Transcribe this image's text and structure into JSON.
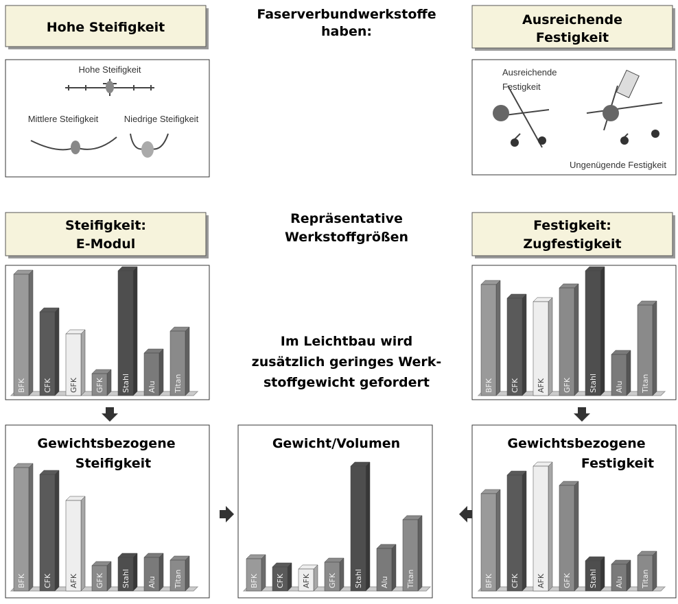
{
  "intro": {
    "title": [
      "Faserverbundwerkstoffe",
      "haben:"
    ]
  },
  "stiffness_box": {
    "title": "Hohe Steifigkeit",
    "labels": [
      "Hohe Steifigkeit",
      "Mittlere Steifigkeit",
      "Niedrige Steifigkeit"
    ]
  },
  "strength_box": {
    "title": [
      "Ausreichende",
      "Festigkeit"
    ],
    "labels": [
      "Ausreichende",
      "Festigkeit",
      "Ungenügende Festigkeit"
    ]
  },
  "middle": {
    "title": [
      "Repräsentative",
      "Werkstoffgrößen"
    ]
  },
  "note": {
    "lines": [
      "Im Leichtbau wird",
      "zusätzlich geringes Werk-",
      "stoffgewicht gefordert"
    ]
  },
  "chart_data": [
    {
      "type": "bar",
      "title": [
        "Steifigkeit:",
        "E-Modul"
      ],
      "categories": [
        "BFK",
        "CFK",
        "GFK",
        "GFK",
        "Stahl",
        "Alu",
        "Titan"
      ],
      "values": [
        177,
        122,
        90,
        32,
        182,
        62,
        94
      ],
      "colors": [
        "#9a9a9a",
        "#5a5a5a",
        "#eeeeee",
        "#8a8a8a",
        "#4e4e4e",
        "#7a7a7a",
        "#8a8a8a"
      ]
    },
    {
      "type": "bar",
      "title": [
        "Festigkeit:",
        "Zugfestigkeit"
      ],
      "categories": [
        "BFK",
        "CFK",
        "AFK",
        "GFK",
        "Stahl",
        "Alu",
        "Titan"
      ],
      "values": [
        162,
        142,
        137,
        157,
        182,
        60,
        132
      ],
      "colors": [
        "#9a9a9a",
        "#5a5a5a",
        "#eeeeee",
        "#8a8a8a",
        "#4e4e4e",
        "#7a7a7a",
        "#8a8a8a"
      ]
    },
    {
      "type": "bar",
      "title": [
        "Gewichtsbezogene",
        "Steifigkeit"
      ],
      "categories": [
        "BFK",
        "CFK",
        "AFK",
        "GFK",
        "Stahl",
        "Alu",
        "Titan"
      ],
      "values": [
        180,
        170,
        132,
        37,
        49,
        49,
        45
      ],
      "colors": [
        "#9a9a9a",
        "#5a5a5a",
        "#eeeeee",
        "#8a8a8a",
        "#4e4e4e",
        "#7a7a7a",
        "#8a8a8a"
      ]
    },
    {
      "type": "bar",
      "title": [
        "Gewicht/Volumen"
      ],
      "categories": [
        "BFK",
        "CFK",
        "AFK",
        "GFK",
        "Stahl",
        "Alu",
        "Titan"
      ],
      "values": [
        47,
        35,
        32,
        42,
        182,
        62,
        104
      ],
      "colors": [
        "#9a9a9a",
        "#5a5a5a",
        "#eeeeee",
        "#8a8a8a",
        "#4e4e4e",
        "#7a7a7a",
        "#8a8a8a"
      ]
    },
    {
      "type": "bar",
      "title": [
        "Gewichtsbezogene",
        "Festigkeit"
      ],
      "categories": [
        "BFK",
        "CFK",
        "AFK",
        "GFK",
        "Stahl",
        "Alu",
        "Titan"
      ],
      "values": [
        142,
        169,
        182,
        154,
        44,
        39,
        52
      ],
      "colors": [
        "#9a9a9a",
        "#5a5a5a",
        "#eeeeee",
        "#8a8a8a",
        "#4e4e4e",
        "#7a7a7a",
        "#8a8a8a"
      ]
    }
  ]
}
